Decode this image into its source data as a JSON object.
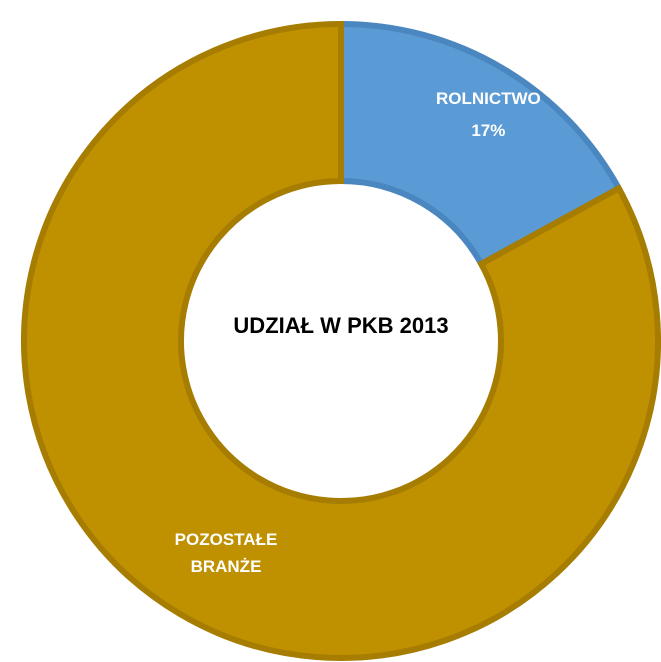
{
  "chart_data": {
    "type": "pie",
    "title": "UDZIAŁ W PKB 2013",
    "categories": [
      "ROLNICTWO",
      "POZOSTAŁE BRANŻE"
    ],
    "values": [
      17,
      83
    ],
    "value_labels": [
      "17%",
      null
    ],
    "colors": [
      "#5b9bd5",
      "#bf9000"
    ]
  }
}
